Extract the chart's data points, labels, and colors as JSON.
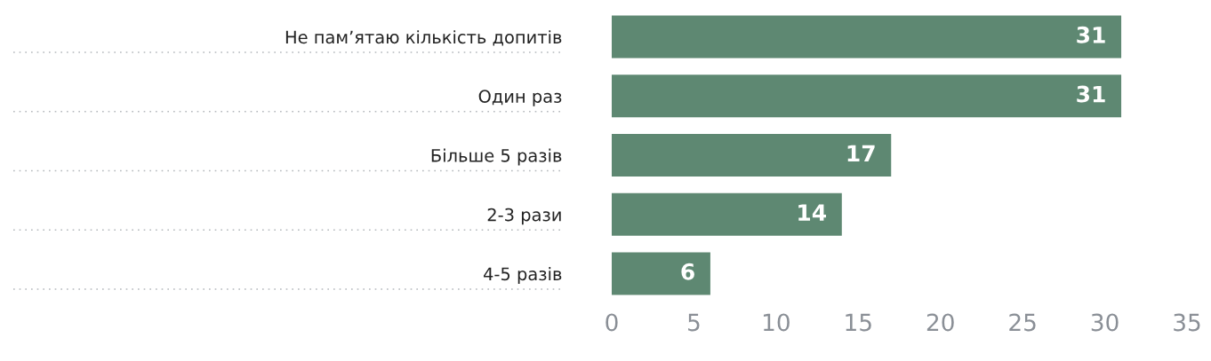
{
  "chart_data": {
    "type": "bar",
    "orientation": "horizontal",
    "categories": [
      "Не пам’ятаю кількість допитів",
      "Один раз",
      "Більше 5 разів",
      "2-3 рази",
      "4-5 разів"
    ],
    "values": [
      31,
      31,
      17,
      14,
      6
    ],
    "color": "#5e8872",
    "xlim": [
      0,
      35
    ],
    "xticks": [
      0,
      5,
      10,
      15,
      20,
      25,
      30,
      35
    ],
    "data_labels": true,
    "grid": false,
    "legend": false
  }
}
